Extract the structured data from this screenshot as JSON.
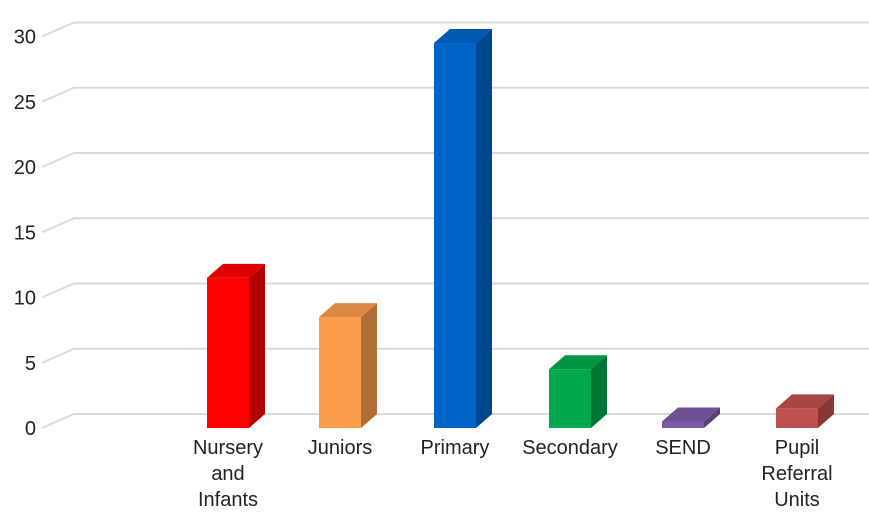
{
  "chart_data": {
    "type": "bar",
    "style": "3d-column",
    "categories": [
      [
        "Nursery",
        "and",
        "Infants"
      ],
      [
        "Juniors"
      ],
      [
        "Primary"
      ],
      [
        "Secondary"
      ],
      [
        "SEND"
      ],
      [
        "Pupil",
        "Referral",
        "Units"
      ]
    ],
    "values": [
      11.5,
      8.5,
      29.5,
      4.5,
      0.5,
      1.5
    ],
    "colors": [
      "#ff0000",
      "#fb9b4b",
      "#0064c8",
      "#00a84c",
      "#7c5ca8",
      "#c0504d"
    ],
    "ylim": [
      0,
      30
    ],
    "yticks": [
      "0",
      "5",
      "10",
      "15",
      "20",
      "25",
      "30"
    ],
    "grid": true,
    "legend": "none",
    "title": "",
    "xlabel": "",
    "ylabel": ""
  }
}
